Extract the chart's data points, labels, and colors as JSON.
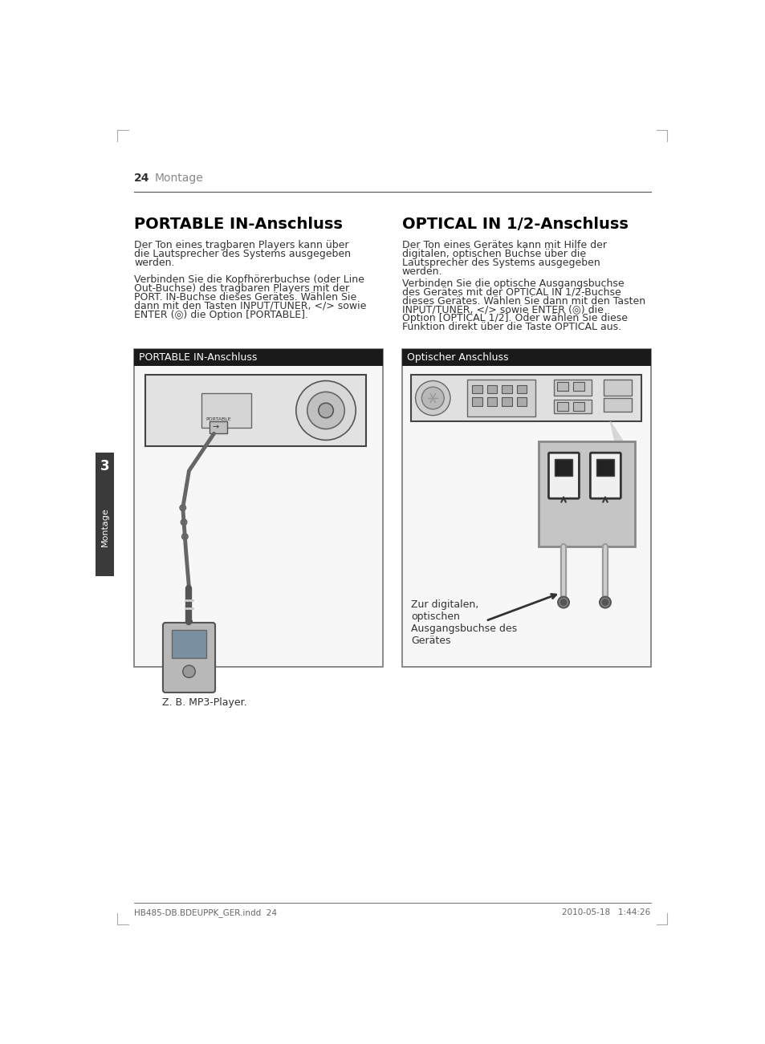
{
  "page_number": "24",
  "section": "Montage",
  "tab_label": "3",
  "tab_sublabel": "Montage",
  "left_title": "PORTABLE IN-Anschluss",
  "right_title": "OPTICAL IN 1/2-Anschluss",
  "left_para1_lines": [
    "Der Ton eines tragbaren Players kann über",
    "die Lautsprecher des Systems ausgegeben",
    "werden."
  ],
  "left_para2_lines": [
    "Verbinden Sie die Kopfhörerbuchse (oder Line",
    "Out-Buchse) des tragbaren Players mit der",
    "PORT. IN-Buchse dieses Gerätes. Wählen Sie",
    "dann mit den Tasten INPUT/TUNER, </> sowie",
    "ENTER (◎) die Option [PORTABLE]."
  ],
  "right_para1_lines": [
    "Der Ton eines Gerätes kann mit Hilfe der",
    "digitalen, optischen Buchse über die",
    "Lautsprecher des Systems ausgegeben",
    "werden."
  ],
  "right_para2_lines": [
    "Verbinden Sie die optische Ausgangsbuchse",
    "des Gerätes mit der OPTICAL IN 1/2-Buchse",
    "dieses Gerätes. Wählen Sie dann mit den Tasten",
    "INPUT/TUNER, </> sowie ENTER (◎) die",
    "Option [OPTICAL 1/2]. Oder wählen Sie diese",
    "Funktion direkt über die Taste OPTICAL aus."
  ],
  "left_box_title": "PORTABLE IN-Anschluss",
  "right_box_title": "Optischer Anschluss",
  "left_caption": "Z. B. MP3-Player.",
  "right_caption": "Zur digitalen,\noptischen\nAusgangsbuchse des\nGerätes",
  "footer_left": "HB485-DB.BDEUPPK_GER.indd  24",
  "footer_right": "2010-05-18   1:44:26",
  "bg_color": "#ffffff",
  "box_header_color": "#1a1a1a",
  "box_header_text_color": "#ffffff",
  "text_color": "#333333",
  "title_color": "#000000",
  "section_color": "#888888",
  "tab_bg_color": "#3a3a3a",
  "tab_text_color": "#ffffff"
}
